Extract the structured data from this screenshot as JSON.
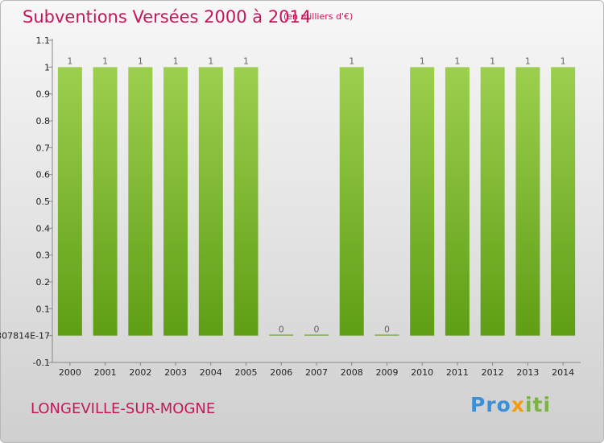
{
  "header": {
    "title": "Subventions Versées 2000 à 2014",
    "subtitle": "(en milliers d'€)"
  },
  "footer": {
    "commune": "LONGEVILLE-SUR-MOGNE",
    "logo_parts": [
      "Pro",
      "x",
      "iti"
    ]
  },
  "colors": {
    "accent": "#c2185b",
    "bar_top": "#9ccf4e",
    "bar_bottom": "#5f9e15"
  },
  "chart_data": {
    "type": "bar",
    "categories": [
      "2000",
      "2001",
      "2002",
      "2003",
      "2004",
      "2005",
      "2006",
      "2007",
      "2008",
      "2009",
      "2010",
      "2011",
      "2012",
      "2013",
      "2014"
    ],
    "values": [
      1,
      1,
      1,
      1,
      1,
      1,
      0,
      0,
      1,
      0,
      1,
      1,
      1,
      1,
      1
    ],
    "value_labels": [
      "1",
      "1",
      "1",
      "1",
      "1",
      "1",
      "0",
      "0",
      "1",
      "0",
      "1",
      "1",
      "1",
      "1",
      "1"
    ],
    "yticks": [
      "-0.1",
      "307814E-17",
      "0.1",
      "0.2",
      "0.3",
      "0.4",
      "0.5",
      "0.6",
      "0.7",
      "0.8",
      "0.9",
      "1",
      "1.1"
    ],
    "ylim": [
      -0.1,
      1.1
    ],
    "grid": false,
    "legend": "none"
  }
}
